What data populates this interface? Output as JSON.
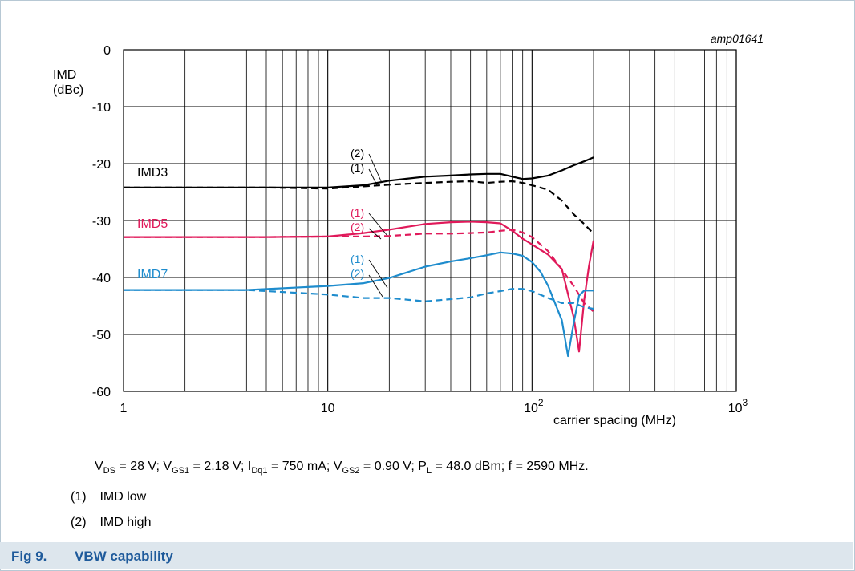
{
  "chart_data": {
    "type": "line",
    "chart_id": "amp01641",
    "ylabel_line1": "IMD",
    "ylabel_line2": "(dBc)",
    "xlabel": "carrier spacing (MHz)",
    "x_scale": "log",
    "xlim": [
      1,
      1000
    ],
    "ylim": [
      -60,
      0
    ],
    "yticks": [
      0,
      -10,
      -20,
      -30,
      -40,
      -50,
      -60
    ],
    "xtick_labels": [
      "1",
      "10",
      "10²",
      "10³"
    ],
    "grid": true,
    "series": [
      {
        "name": "IMD3",
        "variant": "(1)",
        "style": "solid",
        "color": "#000000",
        "x": [
          1,
          5,
          10,
          15,
          20,
          30,
          40,
          50,
          60,
          70,
          80,
          90,
          100,
          120,
          140,
          160,
          180,
          200
        ],
        "y": [
          -24.2,
          -24.2,
          -24.2,
          -23.8,
          -23.0,
          -22.3,
          -22.1,
          -21.9,
          -21.8,
          -21.8,
          -22.3,
          -22.7,
          -22.6,
          -22.1,
          -21.2,
          -20.3,
          -19.6,
          -18.9
        ]
      },
      {
        "name": "IMD3",
        "variant": "(2)",
        "style": "dashed",
        "color": "#000000",
        "x": [
          1,
          5,
          10,
          15,
          20,
          30,
          40,
          50,
          60,
          70,
          80,
          90,
          100,
          120,
          140,
          160,
          180,
          200
        ],
        "y": [
          -24.2,
          -24.2,
          -24.4,
          -24.0,
          -23.7,
          -23.4,
          -23.2,
          -23.1,
          -23.4,
          -23.2,
          -23.1,
          -23.4,
          -23.8,
          -24.6,
          -26.5,
          -28.9,
          -30.6,
          -32.3
        ]
      },
      {
        "name": "IMD5",
        "variant": "(1)",
        "style": "solid",
        "color": "#e0195a",
        "x": [
          1,
          5,
          10,
          15,
          20,
          30,
          40,
          50,
          60,
          70,
          80,
          90,
          100,
          120,
          140,
          160,
          170,
          180,
          190,
          200
        ],
        "y": [
          -32.9,
          -32.9,
          -32.8,
          -32.2,
          -31.6,
          -30.6,
          -30.3,
          -30.2,
          -30.3,
          -30.5,
          -31.8,
          -33.2,
          -34.2,
          -36.0,
          -38.5,
          -47.0,
          -53.0,
          -44.0,
          -38.0,
          -33.5
        ]
      },
      {
        "name": "IMD5",
        "variant": "(2)",
        "style": "dashed",
        "color": "#e0195a",
        "x": [
          1,
          5,
          10,
          15,
          20,
          30,
          40,
          50,
          60,
          70,
          80,
          90,
          100,
          120,
          140,
          160,
          180,
          200
        ],
        "y": [
          -32.9,
          -32.9,
          -32.8,
          -32.8,
          -32.7,
          -32.3,
          -32.3,
          -32.2,
          -32.1,
          -31.8,
          -31.6,
          -32.1,
          -32.9,
          -35.4,
          -38.6,
          -41.5,
          -44.5,
          -46.0
        ]
      },
      {
        "name": "IMD7",
        "variant": "(1)",
        "style": "solid",
        "color": "#1e8ccd",
        "x": [
          1,
          4,
          10,
          15,
          20,
          30,
          40,
          50,
          60,
          70,
          80,
          90,
          100,
          110,
          120,
          140,
          150,
          160,
          170,
          180,
          200
        ],
        "y": [
          -42.2,
          -42.2,
          -41.5,
          -41.0,
          -40.1,
          -38.1,
          -37.2,
          -36.6,
          -36.1,
          -35.6,
          -35.8,
          -36.2,
          -37.3,
          -39.0,
          -41.5,
          -47.5,
          -53.8,
          -48.0,
          -43.2,
          -42.3,
          -42.3
        ]
      },
      {
        "name": "IMD7",
        "variant": "(2)",
        "style": "dashed",
        "color": "#1e8ccd",
        "x": [
          1,
          4,
          10,
          15,
          20,
          30,
          40,
          50,
          60,
          70,
          80,
          90,
          100,
          120,
          140,
          160,
          180,
          200
        ],
        "y": [
          -42.2,
          -42.2,
          -43.0,
          -43.6,
          -43.6,
          -44.2,
          -43.8,
          -43.5,
          -42.8,
          -42.4,
          -42.0,
          -42.0,
          -42.4,
          -43.6,
          -44.5,
          -44.5,
          -45.2,
          -45.5
        ]
      }
    ],
    "curve_labels": [
      {
        "text": "IMD3",
        "color": "#000000"
      },
      {
        "text": "IMD5",
        "color": "#e0195a"
      },
      {
        "text": "IMD7",
        "color": "#1e8ccd"
      }
    ],
    "callouts": [
      {
        "text": "(2)",
        "color": "#000000"
      },
      {
        "text": "(1)",
        "color": "#000000"
      },
      {
        "text": "(1)",
        "color": "#e0195a"
      },
      {
        "text": "(2)",
        "color": "#e0195a"
      },
      {
        "text": "(1)",
        "color": "#1e8ccd"
      },
      {
        "text": "(2)",
        "color": "#1e8ccd"
      }
    ]
  },
  "conditions": {
    "p1": "V",
    "s1": "DS",
    "p2": " = 28 V; V",
    "s2": "GS1",
    "p3": " = 2.18 V; I",
    "s3": "Dq1",
    "p4": " = 750 mA; V",
    "s4": "GS2",
    "p5": " = 0.90 V; P",
    "s5": "L",
    "p6": " = 48.0 dBm; f = 2590 MHz."
  },
  "notes": [
    {
      "num": "(1)",
      "text": "IMD low"
    },
    {
      "num": "(2)",
      "text": "IMD high"
    }
  ],
  "caption": {
    "fig": "Fig 9.",
    "title": "VBW capability"
  }
}
